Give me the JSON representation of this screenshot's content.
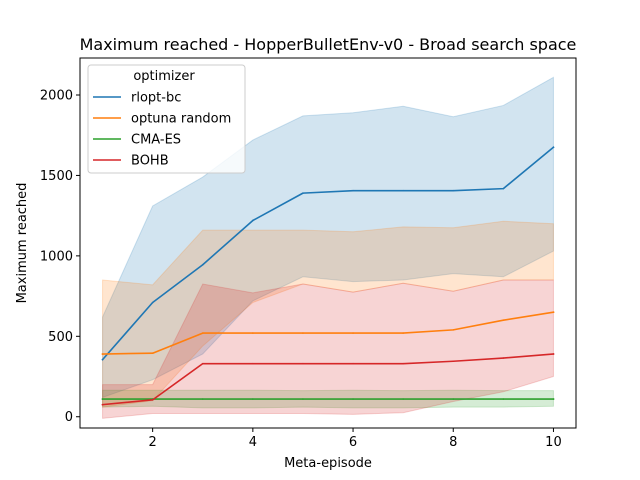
{
  "chart_data": {
    "type": "line",
    "title": "Maximum reached - HopperBulletEnv-v0 - Broad search space",
    "xlabel": "Meta-episode",
    "ylabel": "Maximum reached",
    "xlim": [
      0.55,
      10.45
    ],
    "ylim": [
      -70,
      2230
    ],
    "xticks": [
      2,
      4,
      6,
      8,
      10
    ],
    "yticks": [
      0,
      500,
      1000,
      1500,
      2000
    ],
    "grid": false,
    "legend": {
      "title": "optimizer",
      "placement": "top-left"
    },
    "x": [
      1,
      2,
      3,
      4,
      5,
      6,
      7,
      8,
      9,
      10
    ],
    "series": [
      {
        "name": "rlopt-bc",
        "color": "#1f77b4",
        "values": [
          355,
          710,
          945,
          1220,
          1390,
          1405,
          1405,
          1405,
          1418,
          1675
        ],
        "ci_low": [
          120,
          230,
          390,
          720,
          870,
          840,
          850,
          890,
          870,
          1030
        ],
        "ci_high": [
          620,
          1310,
          1490,
          1720,
          1870,
          1890,
          1930,
          1865,
          1935,
          2110
        ]
      },
      {
        "name": "optuna random",
        "color": "#ff7f0e",
        "values": [
          390,
          395,
          520,
          520,
          520,
          520,
          520,
          540,
          600,
          650
        ],
        "ci_low": [
          60,
          100,
          440,
          710,
          825,
          775,
          830,
          780,
          850,
          850
        ],
        "ci_high": [
          850,
          820,
          1160,
          1160,
          1160,
          1150,
          1180,
          1175,
          1215,
          1200
        ]
      },
      {
        "name": "CMA-ES",
        "color": "#2ca02c",
        "values": [
          110,
          110,
          110,
          110,
          110,
          110,
          110,
          110,
          110,
          110
        ],
        "ci_low": [
          60,
          65,
          55,
          55,
          60,
          55,
          55,
          60,
          60,
          65
        ],
        "ci_high": [
          165,
          165,
          165,
          165,
          162,
          165,
          162,
          165,
          162,
          162
        ]
      },
      {
        "name": "BOHB",
        "color": "#d62728",
        "values": [
          75,
          105,
          330,
          330,
          330,
          330,
          330,
          345,
          365,
          390
        ],
        "ci_low": [
          -10,
          20,
          20,
          20,
          20,
          15,
          25,
          95,
          155,
          250
        ],
        "ci_high": [
          200,
          200,
          825,
          770,
          825,
          775,
          830,
          780,
          850,
          850
        ]
      }
    ]
  }
}
